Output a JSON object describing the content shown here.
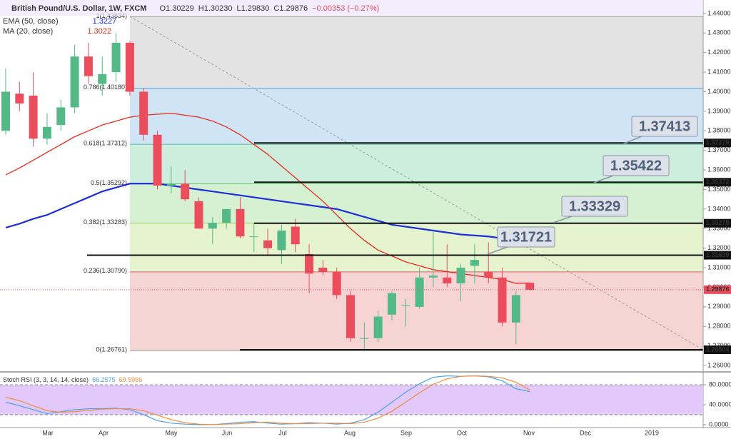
{
  "chart_data": {
    "type": "candlestick",
    "title": "British Pound/U.S. Dollar, 1W, FXCM",
    "ohlc_header": [
      {
        "value": 1.30229,
        "label": "O1.30229"
      },
      {
        "value": 1.3023,
        "label": "H1.30230"
      },
      {
        "value": 1.2983,
        "label": "L1.29830"
      },
      {
        "value": 1.29876,
        "label": "C1.29876"
      },
      {
        "value": -0.00353,
        "label": "−0.00353 (−0.27%)"
      }
    ],
    "candles": {
      "open": [
        1.38,
        1.399,
        1.398,
        1.376,
        1.383,
        1.392,
        1.418,
        1.404,
        1.41,
        1.425,
        1.4,
        1.378,
        1.352,
        1.353,
        1.344,
        1.33,
        1.333,
        1.34,
        1.326,
        1.324,
        1.319,
        1.331,
        1.317,
        1.31,
        1.308,
        1.296,
        1.274,
        1.274,
        1.286,
        1.291,
        1.29,
        1.305,
        1.305,
        1.302,
        1.311,
        1.308,
        1.305,
        1.282,
        1.30229
      ],
      "high": [
        1.412,
        1.405,
        1.41,
        1.389,
        1.396,
        1.424,
        1.425,
        1.418,
        1.43,
        1.426,
        1.402,
        1.38,
        1.362,
        1.36,
        1.346,
        1.336,
        1.34,
        1.346,
        1.333,
        1.33,
        1.332,
        1.335,
        1.322,
        1.314,
        1.31,
        1.298,
        1.282,
        1.288,
        1.298,
        1.294,
        1.31,
        1.329,
        1.322,
        1.312,
        1.322,
        1.323,
        1.31,
        1.298,
        1.3023
      ],
      "low": [
        1.378,
        1.39,
        1.372,
        1.373,
        1.38,
        1.389,
        1.404,
        1.398,
        1.405,
        1.398,
        1.375,
        1.35,
        1.348,
        1.344,
        1.33,
        1.322,
        1.33,
        1.325,
        1.318,
        1.316,
        1.312,
        1.318,
        1.297,
        1.306,
        1.294,
        1.272,
        1.268,
        1.272,
        1.283,
        1.28,
        1.289,
        1.3,
        1.3,
        1.293,
        1.302,
        1.302,
        1.28,
        1.271,
        1.2983
      ],
      "close": [
        1.4,
        1.394,
        1.376,
        1.382,
        1.392,
        1.418,
        1.408,
        1.409,
        1.425,
        1.4,
        1.378,
        1.352,
        1.353,
        1.345,
        1.33,
        1.333,
        1.34,
        1.326,
        1.326,
        1.32,
        1.329,
        1.322,
        1.307,
        1.308,
        1.296,
        1.274,
        1.274,
        1.285,
        1.297,
        1.291,
        1.305,
        1.306,
        1.302,
        1.31,
        1.314,
        1.305,
        1.282,
        1.296,
        1.29876
      ],
      "up_color": "#53b987",
      "down_color": "#eb4d5c"
    },
    "series": [
      {
        "name": "EMA (50, close)",
        "value_label": 1.3227,
        "color": "#1c2fd8",
        "values": [
          1.3305,
          1.3325,
          1.335,
          1.337,
          1.34,
          1.343,
          1.346,
          1.349,
          1.351,
          1.353,
          1.353,
          1.353,
          1.352,
          1.351,
          1.35,
          1.349,
          1.348,
          1.347,
          1.346,
          1.345,
          1.344,
          1.343,
          1.342,
          1.341,
          1.34,
          1.338,
          1.336,
          1.334,
          1.332,
          1.331,
          1.33,
          1.329,
          1.328,
          1.327,
          1.3265,
          1.326,
          1.325,
          1.3235,
          1.3227
        ]
      },
      {
        "name": "MA (20, close)",
        "value_label": 1.3022,
        "color": "#e8291c",
        "values": [
          1.3575,
          1.361,
          1.365,
          1.369,
          1.373,
          1.377,
          1.38,
          1.383,
          1.385,
          1.387,
          1.388,
          1.3885,
          1.389,
          1.388,
          1.387,
          1.385,
          1.382,
          1.378,
          1.373,
          1.368,
          1.362,
          1.356,
          1.35,
          1.344,
          1.337,
          1.33,
          1.324,
          1.319,
          1.316,
          1.313,
          1.311,
          1.309,
          1.308,
          1.307,
          1.306,
          1.305,
          1.304,
          1.302,
          1.3022
        ]
      }
    ],
    "ylim": [
      1.2571,
      1.4469
    ],
    "yticks": [
      {
        "value": 1.44,
        "label": "1.44000"
      },
      {
        "value": 1.43,
        "label": "1.43000"
      },
      {
        "value": 1.42,
        "label": "1.42000"
      },
      {
        "value": 1.41,
        "label": "1.41000"
      },
      {
        "value": 1.4,
        "label": "1.40000"
      },
      {
        "value": 1.39,
        "label": "1.39000"
      },
      {
        "value": 1.38,
        "label": "1.38000"
      },
      {
        "value": 1.37,
        "label": "1.37000"
      },
      {
        "value": 1.36,
        "label": "1.36000"
      },
      {
        "value": 1.35,
        "label": "1.35000"
      },
      {
        "value": 1.34,
        "label": "1.34000"
      },
      {
        "value": 1.33,
        "label": "1.33000"
      },
      {
        "value": 1.32,
        "label": "1.32000"
      },
      {
        "value": 1.31,
        "label": "1.31000"
      },
      {
        "value": 1.3,
        "label": "1.30000"
      },
      {
        "value": 1.29,
        "label": "1.29000"
      },
      {
        "value": 1.28,
        "label": "1.28000"
      },
      {
        "value": 1.27,
        "label": "1.27000"
      },
      {
        "value": 1.26,
        "label": "1.26000"
      }
    ],
    "fib_levels": [
      {
        "value": 1.43834,
        "label": "1(1.43834)",
        "color": "#9e9e9e",
        "fill": "#e3e3e3"
      },
      {
        "value": 1.4018,
        "label": "0.786(1.40180)",
        "color": "#5ba7d9",
        "fill": "#cfe5f5"
      },
      {
        "value": 1.37312,
        "label": "0.618(1.37312)",
        "color": "#4fc1a0",
        "fill": "#cdeedd"
      },
      {
        "value": 1.35292,
        "label": "0.5(1.35292)",
        "color": "#69c76b",
        "fill": "#d6f1d1"
      },
      {
        "value": 1.33283,
        "label": "0.382(1.33283)",
        "color": "#9bcf5f",
        "fill": "#e6f3cf"
      },
      {
        "value": 1.3079,
        "label": "0.236(1.30790)",
        "color": "#e06666",
        "fill": "#f7d4d4"
      },
      {
        "value": 1.26761,
        "label": "0(1.26761)",
        "color": "#9e9e9e"
      }
    ],
    "levels": [
      1.37379,
      1.35372,
      1.33275,
      1.31639,
      1.26804
    ],
    "callouts": [
      1.37413,
      1.35422,
      1.33329,
      1.31721
    ],
    "last_price": 1.29876,
    "last_color": "#eb4d5c",
    "time_labels": [
      "Mar",
      "Apr",
      "May",
      "Jun",
      "Jul",
      "Aug",
      "Sep",
      "Oct",
      "Nov",
      "Dec",
      "2019"
    ],
    "oscillator": {
      "title": "Stoch RSI (3, 3, 14, 14, close)",
      "ylim": [
        -3,
        103
      ],
      "yticks": [
        {
          "value": 80,
          "label": "80.0000"
        },
        {
          "value": 40,
          "label": "40.0000"
        },
        {
          "value": 0,
          "label": "0.0000"
        }
      ],
      "band": [
        20,
        80
      ],
      "band_color": "#e2c8fb",
      "series": [
        {
          "name": "K",
          "color": "#4aa3e8",
          "values": [
            45,
            38,
            30,
            22,
            26,
            30,
            32,
            32,
            33,
            30,
            20,
            8,
            3,
            1,
            0,
            0,
            2,
            5,
            6,
            3,
            1,
            2,
            4,
            3,
            1,
            3,
            10,
            25,
            45,
            65,
            82,
            95,
            98,
            97,
            98,
            96,
            88,
            72,
            66.2575
          ]
        },
        {
          "name": "D",
          "color": "#f08c3c",
          "values": [
            55,
            48,
            38,
            28,
            25,
            26,
            29,
            31,
            32,
            32,
            28,
            19,
            10,
            4,
            1,
            0,
            1,
            2,
            4,
            5,
            3,
            2,
            2,
            3,
            3,
            2,
            5,
            13,
            27,
            45,
            64,
            81,
            92,
            97,
            98,
            97,
            94,
            85,
            69.5966
          ]
        }
      ]
    }
  }
}
